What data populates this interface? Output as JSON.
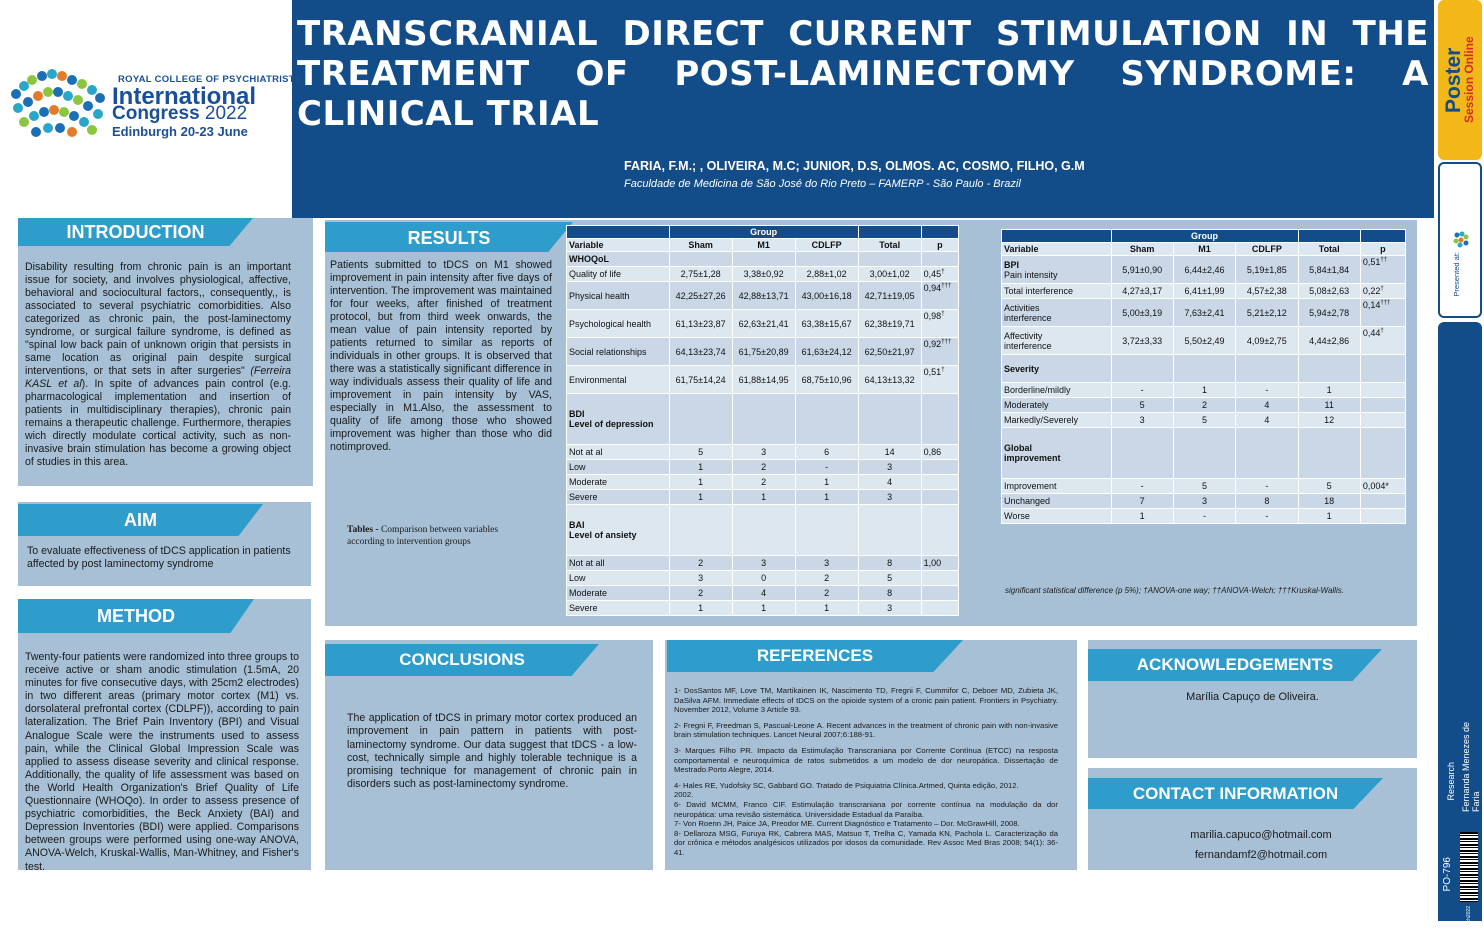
{
  "header": {
    "title": "TRANSCRANIAL DIRECT CURRENT STIMULATION IN THE TREATMENT OF POST-LAMINECTOMY SYNDROME: A CLINICAL TRIAL",
    "authors": "FARIA, F.M.; , OLIVEIRA, M.C; JUNIOR, D.S, OLMOS. AC, COSMO, FILHO, G.M",
    "affiliation": "Faculdade de Medicina de São José do Rio Preto – FAMERP -  São Paulo - Brazil"
  },
  "logo": {
    "line1": "ROYAL COLLEGE OF PSYCHIATRISTS",
    "line2": "International",
    "line3a": "Congress",
    "line3b": "2022",
    "line4": "Edinburgh 20-23 June"
  },
  "introduction": {
    "heading": "INTRODUCTION",
    "text_a": "Disability resulting from chronic pain is an important issue for society, and involves physiological, affective, behavioral and sociocultural factors,, consequently,, is associated to several psychiatric comorbidities. Also categorized as chronic pain, the post-laminectomy syndrome, or surgical failure syndrome, is defined as \"spinal low back pain of unknown origin that persists in same location as original pain despite surgical interventions, or that sets in after surgeries\" ",
    "text_cite": "(Ferreira KASL et al",
    "text_b": "). In spite of advances pain control (e.g. pharmacological implementation and insertion of patients in multidisciplinary therapies), chronic pain remains a therapeutic challenge. Furthermore, therapies wich directly modulate cortical activity, such as non-invasive brain stimulation has become a growing object of studies in this area."
  },
  "aim": {
    "heading": "AIM",
    "text": "To evaluate  effectiveness of tDCS application in patients affected by post laminectomy syndrome"
  },
  "method": {
    "heading": "METHOD",
    "text": "Twenty-four patients were randomized into three groups to receive active or sham anodic stimulation (1.5mA, 20 minutes for five consecutive days, with 25cm2 electrodes) in two different areas (primary motor cortex (M1) vs. dorsolateral prefrontal cortex (CDLPF)), according to pain lateralization. The Brief Pain Inventory (BPI) and Visual Analogue Scale were the instruments used to assess pain, while the Clinical Global Impression Scale was applied to assess disease severity and clinical response. Additionally, the quality of life assessment was based on the World Health Organization's Brief Quality of Life Questionnaire (WHOQo). In order to assess presence of psychiatric comorbidities, the Beck Anxiety (BAI) and Depression Inventories (BDI) were applied. Comparisons between groups were performed using one-way ANOVA, ANOVA-Welch, Kruskal-Wallis, Man-Whitney, and Fisher's test."
  },
  "results": {
    "heading": "RESULTS",
    "text": "Patients submitted to tDCS on M1 showed improvement in pain intensity after five days of intervention. The improvement was maintained for four weeks, after finished of  treatment protocol, but from third week onwards, the mean value of pain intensity reported by  patients returned to similar as reports of individuals in other groups. It is observed that there was a statistically significant difference in  way individuals assess their quality of life and improvement in pain intensity by VAS, especially in M1.Also, the assessment to quality of life among those who showed improvement was higher than those who did notimproved.",
    "caption_bold": "Tables - ",
    "caption_text": "Comparison between variables according to intervention groups",
    "footnote": "significant statistical difference (p  5%); †ANOVA-one way; ††ANOVA-Welch; †††Kruskal-Wallis."
  },
  "table1": {
    "group_label": "Group",
    "columns": [
      "Variable",
      "Sham",
      "M1",
      "CDLFP",
      "Total",
      "p"
    ],
    "rows": [
      {
        "label": "WHOQoL",
        "bold": true,
        "cells": [
          "",
          "",
          "",
          "",
          ""
        ]
      },
      {
        "label": "Quality of life",
        "cells": [
          "2,75±1,28",
          "3,38±0,92",
          "2,88±1,02",
          "3,00±1,02",
          "0,45"
        ],
        "sup": "†"
      },
      {
        "label": "Physical health",
        "cells": [
          "42,25±27,26",
          "42,88±13,71",
          "43,00±16,18",
          "42,71±19,05",
          "0,94"
        ],
        "sup": "†††",
        "tall": true
      },
      {
        "label": "Psychological health",
        "cells": [
          "61,13±23,87",
          "62,63±21,41",
          "63,38±15,67",
          "62,38±19,71",
          "0,98"
        ],
        "sup": "†",
        "tall": true
      },
      {
        "label": "Social relationships",
        "cells": [
          "64,13±23,74",
          "61,75±20,89",
          "61,63±24,12",
          "62,50±21,97",
          "0,92"
        ],
        "sup": "†††",
        "tall": true
      },
      {
        "label": "Environmental",
        "cells": [
          "61,75±14,24",
          "61,88±14,95",
          "68,75±10,96",
          "64,13±13,32",
          "0,51"
        ],
        "sup": "†",
        "tall": true
      },
      {
        "label": "BDI",
        "label2": "Level of depression",
        "bold": true,
        "cells": [
          "",
          "",
          "",
          "",
          ""
        ],
        "xtall": true
      },
      {
        "label": "Not at al",
        "cells": [
          "5",
          "3",
          "6",
          "14",
          "0,86"
        ]
      },
      {
        "label": "Low",
        "cells": [
          "1",
          "2",
          "-",
          "3",
          ""
        ]
      },
      {
        "label": "Moderate",
        "cells": [
          "1",
          "2",
          "1",
          "4",
          ""
        ]
      },
      {
        "label": "Severe",
        "cells": [
          "1",
          "1",
          "1",
          "3",
          ""
        ]
      },
      {
        "label": "BAI",
        "label2": "Level of ansiety",
        "bold": true,
        "cells": [
          "",
          "",
          "",
          "",
          ""
        ],
        "xtall": true
      },
      {
        "label": "Not at all",
        "cells": [
          "2",
          "3",
          "3",
          "8",
          "1,00"
        ]
      },
      {
        "label": "Low",
        "cells": [
          "3",
          "0",
          "2",
          "5",
          ""
        ]
      },
      {
        "label": "Moderate",
        "cells": [
          "2",
          "4",
          "2",
          "8",
          ""
        ]
      },
      {
        "label": "Severe",
        "cells": [
          "1",
          "1",
          "1",
          "3",
          ""
        ]
      }
    ]
  },
  "table2": {
    "group_label": "Group",
    "columns": [
      "Variable",
      "Sham",
      "M1",
      "CDLFP",
      "Total",
      "p"
    ],
    "rows": [
      {
        "label": "BPI",
        "label2": "Pain intensity",
        "boldfirst": true,
        "cells": [
          "5,91±0,90",
          "6,44±2,46",
          "5,19±1,85",
          "5,84±1,84",
          "0,51"
        ],
        "sup": "††",
        "tall": true
      },
      {
        "label": "Total interference",
        "cells": [
          "4,27±3,17",
          "6,41±1,99",
          "4,57±2,38",
          "5,08±2,63",
          "0,22"
        ],
        "sup": "†"
      },
      {
        "label": "Activities",
        "label2": "interference",
        "cells": [
          "5,00±3,19",
          "7,63±2,41",
          "5,21±2,12",
          "5,94±2,78",
          "0,14"
        ],
        "sup": "†††",
        "tall": true
      },
      {
        "label": "Affectivity",
        "label2": "interference",
        "cells": [
          "3,72±3,33",
          "5,50±2,49",
          "4,09±2,75",
          "4,44±2,86",
          "0,44"
        ],
        "sup": "†",
        "tall": true
      },
      {
        "label": "Severity",
        "bold": true,
        "cells": [
          "",
          "",
          "",
          "",
          ""
        ],
        "tall": true
      },
      {
        "label": "Borderline/mildly",
        "cells": [
          "-",
          "1",
          "-",
          "1",
          ""
        ]
      },
      {
        "label": "Moderately",
        "cells": [
          "5",
          "2",
          "4",
          "11",
          ""
        ]
      },
      {
        "label": "Markedly/Severely",
        "cells": [
          "3",
          "5",
          "4",
          "12",
          ""
        ]
      },
      {
        "label": "Global",
        "label2": "improvement",
        "bold": true,
        "cells": [
          "",
          "",
          "",
          "",
          ""
        ],
        "xtall": true
      },
      {
        "label": "Improvement",
        "cells": [
          "-",
          "5",
          "-",
          "5",
          "0,004*"
        ]
      },
      {
        "label": "Unchanged",
        "cells": [
          "7",
          "3",
          "8",
          "18",
          ""
        ]
      },
      {
        "label": "Worse",
        "cells": [
          "1",
          "-",
          "-",
          "1",
          ""
        ]
      }
    ]
  },
  "conclusions": {
    "heading": "CONCLUSIONS",
    "text": "The application of tDCS in primary motor cortex produced an improvement in pain pattern in patients with post-laminectomy syndrome. Our data suggest that tDCS - a low-cost, technically simple and highly tolerable technique is a promising technique for management of chronic pain in disorders such as post-laminectomy syndrome."
  },
  "references": {
    "heading": "REFERENCES",
    "items": [
      " 1- DosSantos MF, Love TM, Martikainen IK, Nascimento TD, Fregni F, Cummifor C, Deboer MD, Zubieta JK, DaSilva AFM. Immediate effects of tDCS on the opioide system of a cronic pain patient. Frontiers in Psychiatry. November  2012, Volume 3 Article 93.",
      "2- Fregni F, Freedman S, Pascual-Leone A. Recent advances in the treatment of chronic pain with non-invasive brain stimulation techniques. Lancet Neural 2007;6:188-91.",
      "3- Marques Filho PR. Impacto da Estimulação Transcraniana por Corrente Contínua (ETCC) na resposta comportamental e neuroquímica de ratos submetidos a um modelo de dor neuropática. Dissertação de Mestrado.Porto Alegre, 2014.",
      "4- Hales RE, Yudofsky SC, Gabbard GO. Tratado de Psiquiatria Clínica.Artmed, Quinta edição, 2012.",
      "2002.",
      "6- David MCMM, Franco CIF. Estimulação transcraniana por corrente contínua na modulação da dor neuropática: uma revisão sistemática. Universidade Estadual da Paraíba.",
      "7- Von Roenn JH, Paice JA, Preodor ME. Current Diagnóstico e Tratamento – Dor. McGrawHill, 2008.",
      "8- Dellaroza MSG, Furuya RK, Cabrera MAS, Matsuo T, Trelha C, Yamada KN, Pacholа L. Caracterização da dor crônica e métodos analgésicos utilizados por idosos da  comunidade. Rev Assoc Med Bras 2008; 54(1): 36-41."
    ]
  },
  "acknowledgements": {
    "heading": "ACKNOWLEDGEMENTS",
    "text": "Marília Capuço de Oliveira."
  },
  "contact": {
    "heading": "CONTACT INFORMATION",
    "email1": "marilia.capuco@hotmail.com",
    "email2": "fernandamf2@hotmail.com"
  },
  "sidebar": {
    "poster_label": "Poster",
    "session_label": "Session Online",
    "presented_at": "Presented at:",
    "category": "Research",
    "author": "Fernanda Menezes de Faria",
    "code": "PO-796",
    "footer": "RCPsych2022"
  }
}
